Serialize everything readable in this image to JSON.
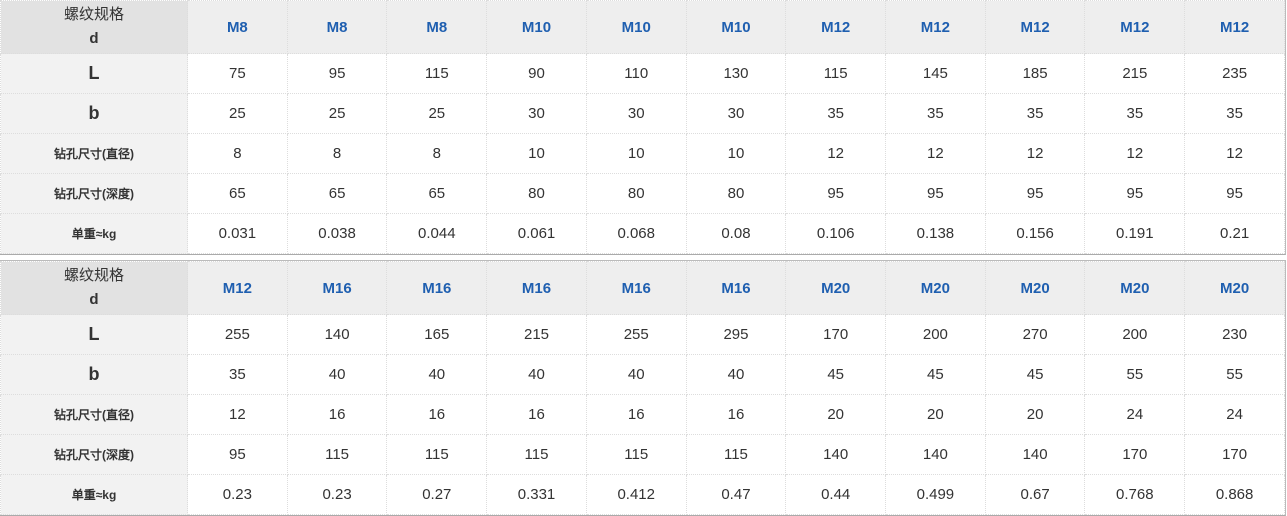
{
  "labels": {
    "spec_line1": "螺纹规格",
    "spec_line2": "d",
    "L": "L",
    "b": "b",
    "drill_dia": "钻孔尺寸(直径)",
    "drill_depth": "钻孔尺寸(深度)",
    "weight": "单重≈kg"
  },
  "tables": [
    {
      "d": [
        "M8",
        "M8",
        "M8",
        "M10",
        "M10",
        "M10",
        "M12",
        "M12",
        "M12",
        "M12",
        "M12"
      ],
      "L": [
        "75",
        "95",
        "115",
        "90",
        "110",
        "130",
        "115",
        "145",
        "185",
        "215",
        "235"
      ],
      "b": [
        "25",
        "25",
        "25",
        "30",
        "30",
        "30",
        "35",
        "35",
        "35",
        "35",
        "35"
      ],
      "drill_dia": [
        "8",
        "8",
        "8",
        "10",
        "10",
        "10",
        "12",
        "12",
        "12",
        "12",
        "12"
      ],
      "drill_depth": [
        "65",
        "65",
        "65",
        "80",
        "80",
        "80",
        "95",
        "95",
        "95",
        "95",
        "95"
      ],
      "weight": [
        "0.031",
        "0.038",
        "0.044",
        "0.061",
        "0.068",
        "0.08",
        "0.106",
        "0.138",
        "0.156",
        "0.191",
        "0.21"
      ]
    },
    {
      "d": [
        "M12",
        "M16",
        "M16",
        "M16",
        "M16",
        "M16",
        "M20",
        "M20",
        "M20",
        "M20",
        "M20"
      ],
      "L": [
        "255",
        "140",
        "165",
        "215",
        "255",
        "295",
        "170",
        "200",
        "270",
        "200",
        "230"
      ],
      "b": [
        "35",
        "40",
        "40",
        "40",
        "40",
        "40",
        "45",
        "45",
        "45",
        "55",
        "55"
      ],
      "drill_dia": [
        "12",
        "16",
        "16",
        "16",
        "16",
        "16",
        "20",
        "20",
        "20",
        "24",
        "24"
      ],
      "drill_depth": [
        "95",
        "115",
        "115",
        "115",
        "115",
        "115",
        "140",
        "140",
        "140",
        "170",
        "170"
      ],
      "weight": [
        "0.23",
        "0.23",
        "0.27",
        "0.331",
        "0.412",
        "0.47",
        "0.44",
        "0.499",
        "0.67",
        "0.768",
        "0.868"
      ]
    }
  ],
  "colors": {
    "spec_text": "#1f5fb0",
    "header_bg": "#eeeeee",
    "label_bg": "#f2f2f2"
  }
}
